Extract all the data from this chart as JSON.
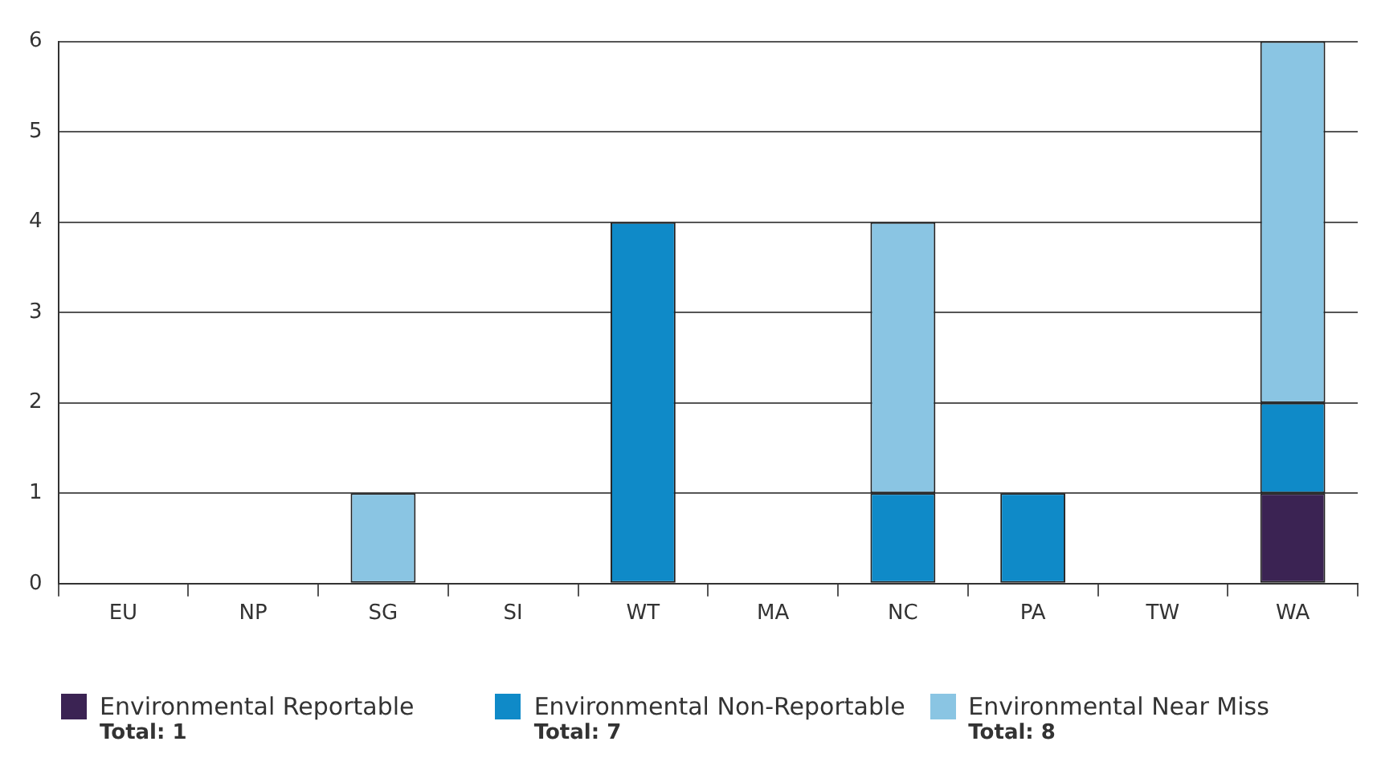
{
  "chart_data": {
    "type": "bar",
    "stacked": true,
    "categories": [
      "EU",
      "NP",
      "SG",
      "SI",
      "WT",
      "MA",
      "NC",
      "PA",
      "TW",
      "WA"
    ],
    "series": [
      {
        "name": "Environmental Reportable",
        "color": "#3b2353",
        "values": [
          0,
          0,
          0,
          0,
          0,
          0,
          0,
          0,
          0,
          1
        ]
      },
      {
        "name": "Environmental Non-Reportable",
        "color": "#0f8ac8",
        "values": [
          0,
          0,
          0,
          0,
          4,
          0,
          1,
          1,
          0,
          1
        ]
      },
      {
        "name": "Environmental Near Miss",
        "color": "#8ac5e3",
        "values": [
          0,
          0,
          1,
          0,
          0,
          0,
          3,
          0,
          0,
          4
        ]
      }
    ],
    "ylim": [
      0,
      6
    ],
    "yticks": [
      0,
      1,
      2,
      3,
      4,
      5,
      6
    ],
    "grid": "y",
    "legend": "bottom",
    "annotations": [
      "Total: 1",
      "Total: 7",
      "Total: 8"
    ]
  }
}
